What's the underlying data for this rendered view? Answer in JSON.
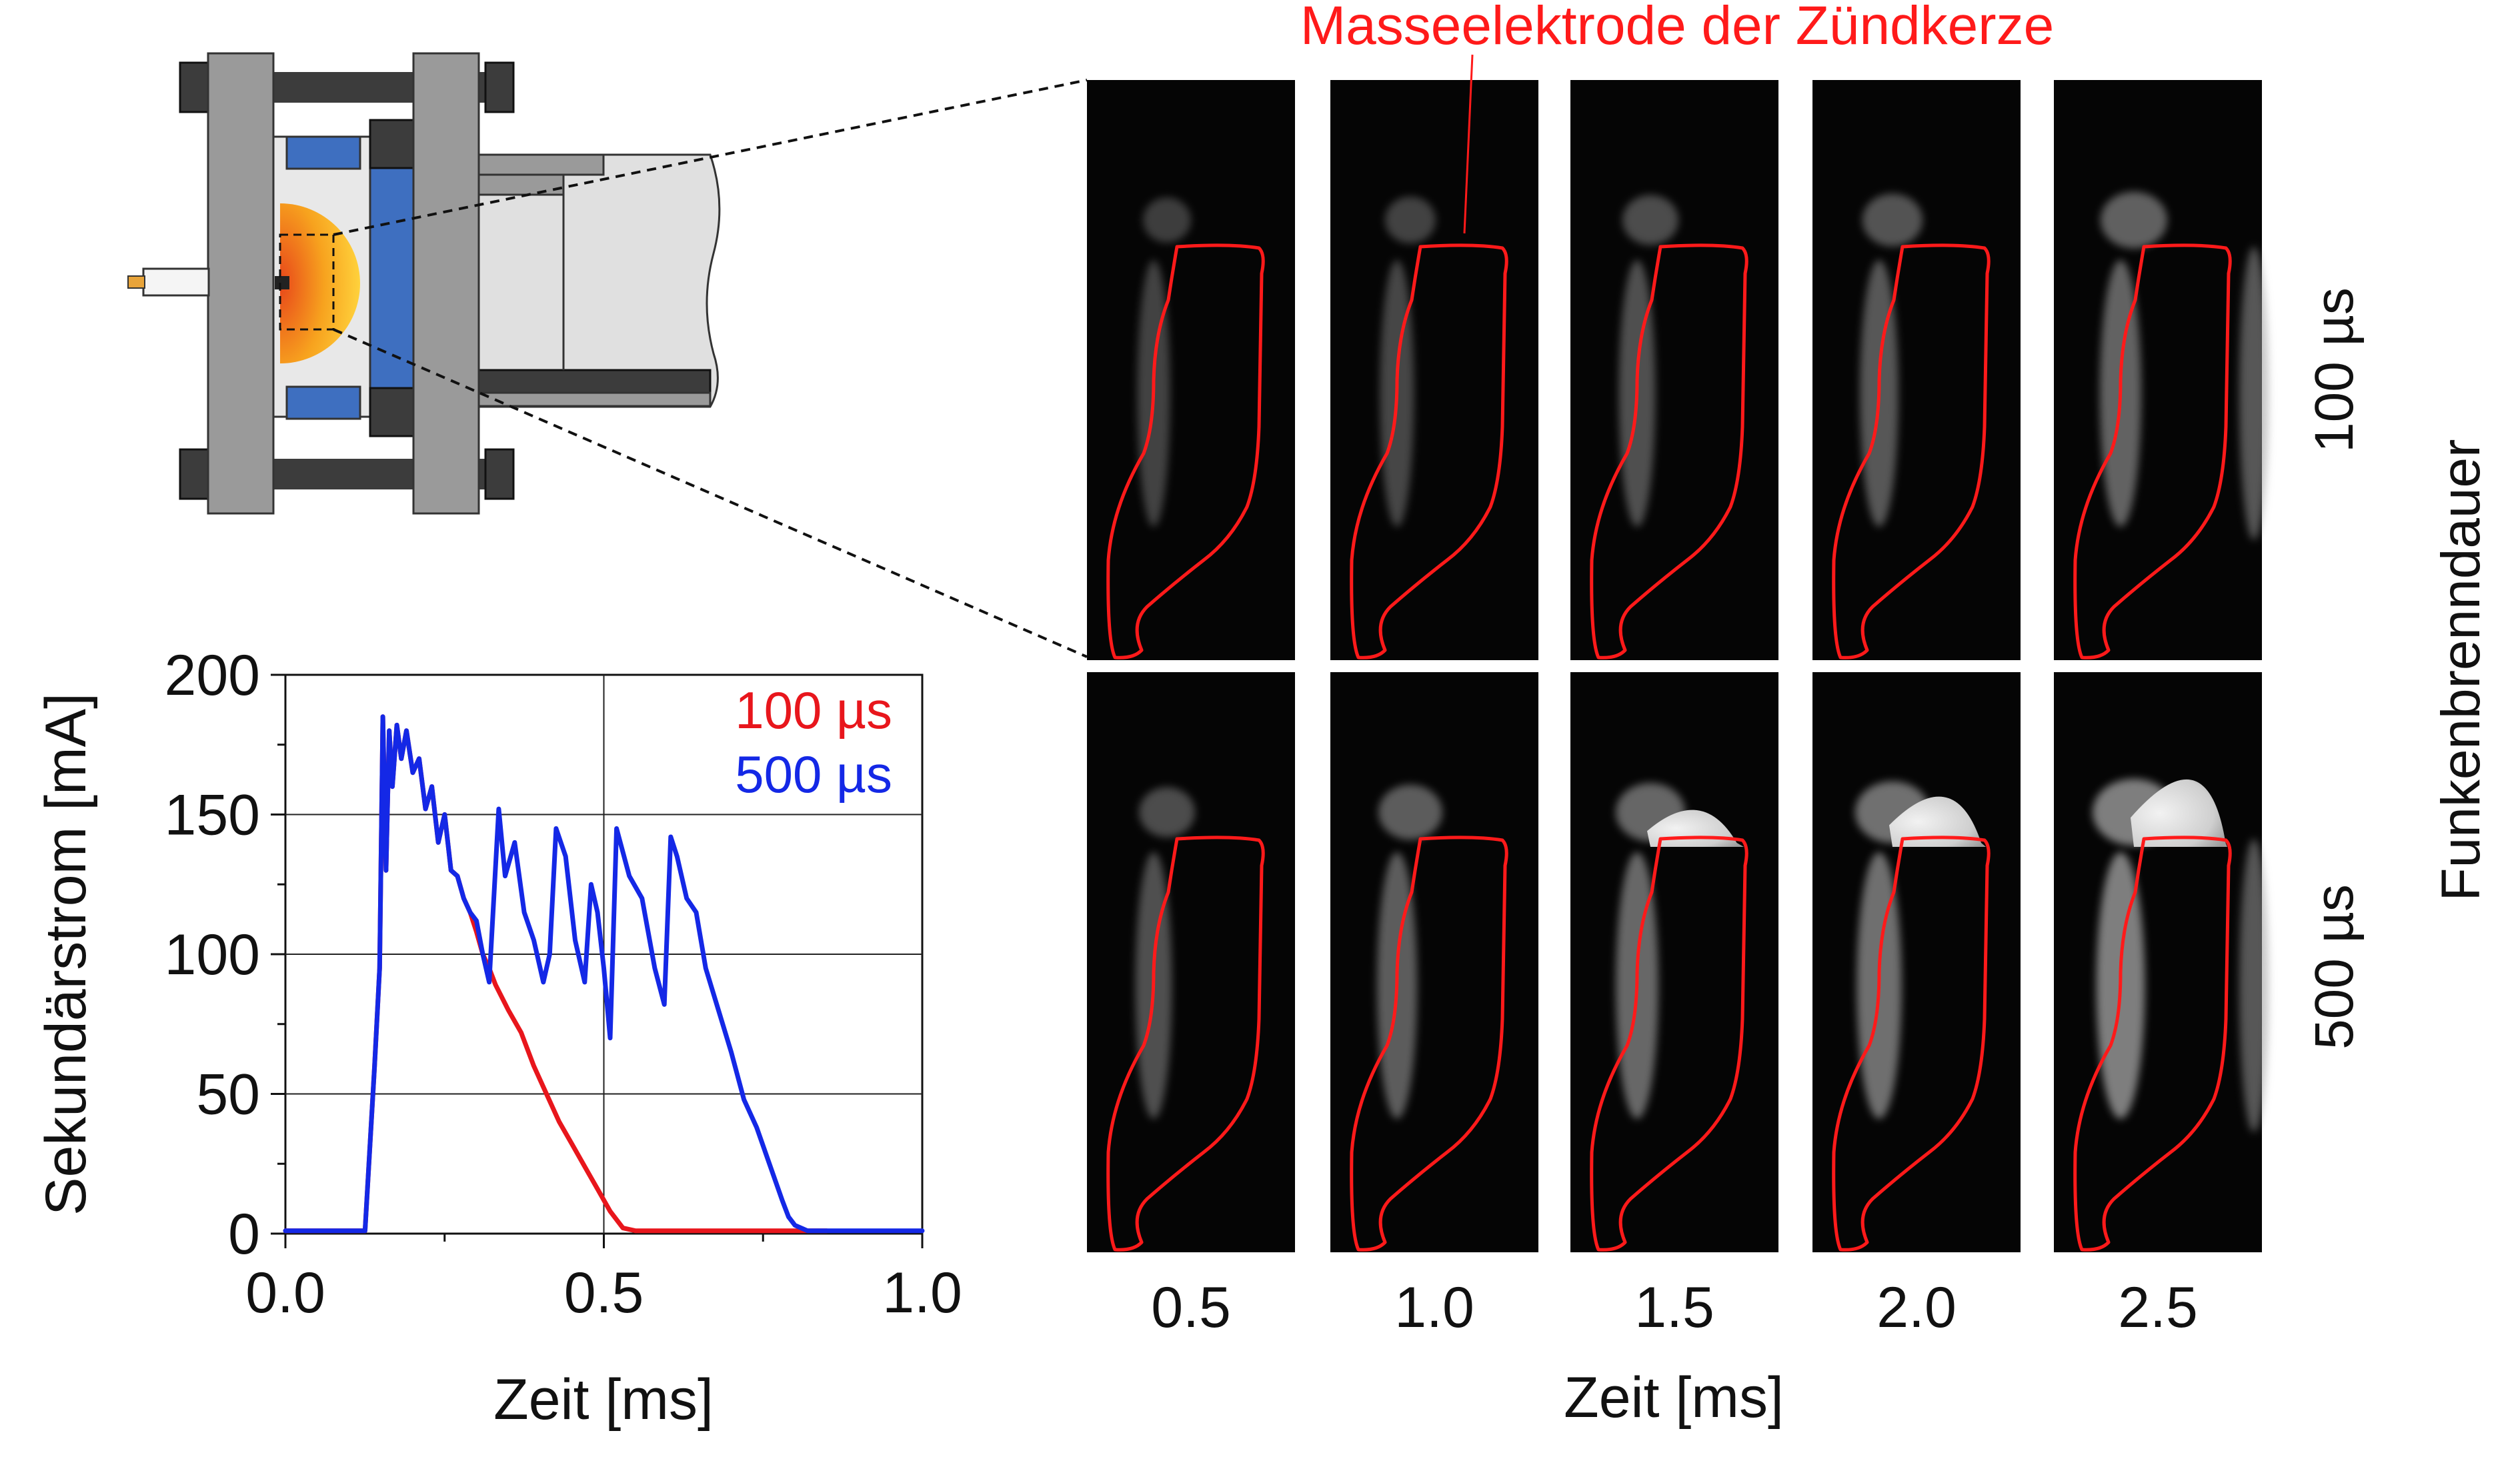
{
  "colors": {
    "series_100": "#e8161c",
    "series_500": "#1428e6",
    "electrode_outline": "#ff1a1a",
    "annotation": "#ff1a1a",
    "flame_core": "#e8461a",
    "flame_edge": "#ffd23c",
    "window_blue": "#3e6fc0",
    "frame_gray": "#9a9a9a",
    "bolt_dark": "#3c3c3c"
  },
  "annotation": "Masseelektrode der Zündkerze",
  "image_grid": {
    "frame_times": [
      "0.5",
      "1.0",
      "1.5",
      "2.0",
      "2.5"
    ],
    "time_axis_label": "Zeit [ms]",
    "row_labels": [
      "100 µs",
      "500 µs"
    ],
    "side_label": "Funkenbrenndauer"
  },
  "chart_data": {
    "type": "line",
    "xlabel": "Zeit [ms]",
    "ylabel": "Sekundärstrom [mA]",
    "xlim": [
      0.0,
      1.0
    ],
    "ylim": [
      0,
      200
    ],
    "xticks": [
      "0.0",
      "0.5",
      "1.0"
    ],
    "yticks": [
      "0",
      "50",
      "100",
      "150",
      "200"
    ],
    "grid": true,
    "legend_position": "top-right",
    "series": [
      {
        "name": "100 µs",
        "x": [
          0.0,
          0.125,
          0.14,
          0.148,
          0.153,
          0.158,
          0.163,
          0.168,
          0.175,
          0.182,
          0.19,
          0.2,
          0.21,
          0.22,
          0.23,
          0.24,
          0.25,
          0.26,
          0.27,
          0.28,
          0.29,
          0.3,
          0.31,
          0.32,
          0.33,
          0.35,
          0.37,
          0.39,
          0.41,
          0.43,
          0.45,
          0.47,
          0.49,
          0.51,
          0.53,
          0.55,
          0.6,
          0.7,
          0.8,
          0.85
        ],
        "y": [
          1,
          1,
          60,
          95,
          185,
          130,
          180,
          160,
          182,
          170,
          180,
          165,
          170,
          152,
          160,
          140,
          150,
          130,
          128,
          120,
          115,
          108,
          100,
          95,
          89,
          80,
          72,
          60,
          50,
          40,
          32,
          24,
          16,
          8,
          2,
          1,
          1,
          1,
          1,
          1
        ]
      },
      {
        "name": "500 µs",
        "x": [
          0.0,
          0.125,
          0.14,
          0.148,
          0.153,
          0.158,
          0.163,
          0.168,
          0.175,
          0.182,
          0.19,
          0.2,
          0.21,
          0.22,
          0.23,
          0.24,
          0.25,
          0.26,
          0.27,
          0.28,
          0.29,
          0.3,
          0.31,
          0.32,
          0.335,
          0.345,
          0.36,
          0.375,
          0.39,
          0.405,
          0.415,
          0.425,
          0.44,
          0.455,
          0.47,
          0.48,
          0.49,
          0.5,
          0.51,
          0.52,
          0.54,
          0.56,
          0.58,
          0.595,
          0.605,
          0.615,
          0.63,
          0.645,
          0.66,
          0.68,
          0.7,
          0.72,
          0.74,
          0.76,
          0.78,
          0.79,
          0.8,
          0.82,
          0.9,
          1.0
        ],
        "y": [
          1,
          1,
          60,
          95,
          185,
          130,
          180,
          160,
          182,
          170,
          180,
          165,
          170,
          152,
          160,
          140,
          150,
          130,
          128,
          120,
          115,
          112,
          100,
          90,
          152,
          128,
          140,
          115,
          105,
          90,
          100,
          145,
          135,
          105,
          90,
          125,
          115,
          95,
          70,
          145,
          128,
          120,
          95,
          82,
          142,
          135,
          120,
          115,
          95,
          80,
          65,
          48,
          38,
          25,
          12,
          6,
          3,
          1,
          1,
          1
        ]
      }
    ]
  }
}
